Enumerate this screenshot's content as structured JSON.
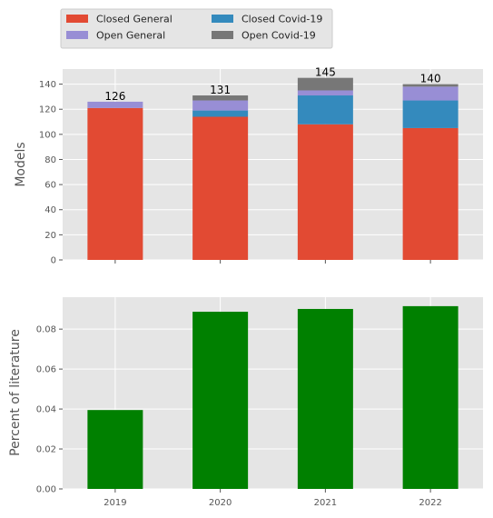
{
  "chart_data": [
    {
      "type": "bar",
      "stacked": true,
      "categories": [
        "2019",
        "2020",
        "2021",
        "2022"
      ],
      "series": [
        {
          "name": "Closed General",
          "color": "#E24A33",
          "values": [
            121,
            114,
            108,
            105
          ]
        },
        {
          "name": "Closed Covid-19",
          "color": "#348ABD",
          "values": [
            0,
            5,
            23,
            22
          ]
        },
        {
          "name": "Open General",
          "color": "#988ED5",
          "values": [
            5,
            8,
            4,
            11
          ]
        },
        {
          "name": "Open Covid-19",
          "color": "#777777",
          "values": [
            0,
            4,
            10,
            2
          ]
        }
      ],
      "totals": [
        "126",
        "131",
        "145",
        "140"
      ],
      "ylabel": "Models",
      "ylim": [
        0,
        152
      ],
      "yticks": [
        "0",
        "20",
        "40",
        "60",
        "80",
        "100",
        "120",
        "140"
      ],
      "grid": true,
      "legend": {
        "placement": "top-left, above chart",
        "columns": 2
      }
    },
    {
      "type": "bar",
      "categories": [
        "2019",
        "2020",
        "2021",
        "2022"
      ],
      "values": [
        0.0395,
        0.0887,
        0.0901,
        0.0915
      ],
      "color": "#008000",
      "ylabel": "Percent of literature",
      "ylim": [
        0,
        0.096
      ],
      "yticks": [
        "0.00",
        "0.02",
        "0.04",
        "0.06",
        "0.08"
      ],
      "grid": true
    }
  ]
}
